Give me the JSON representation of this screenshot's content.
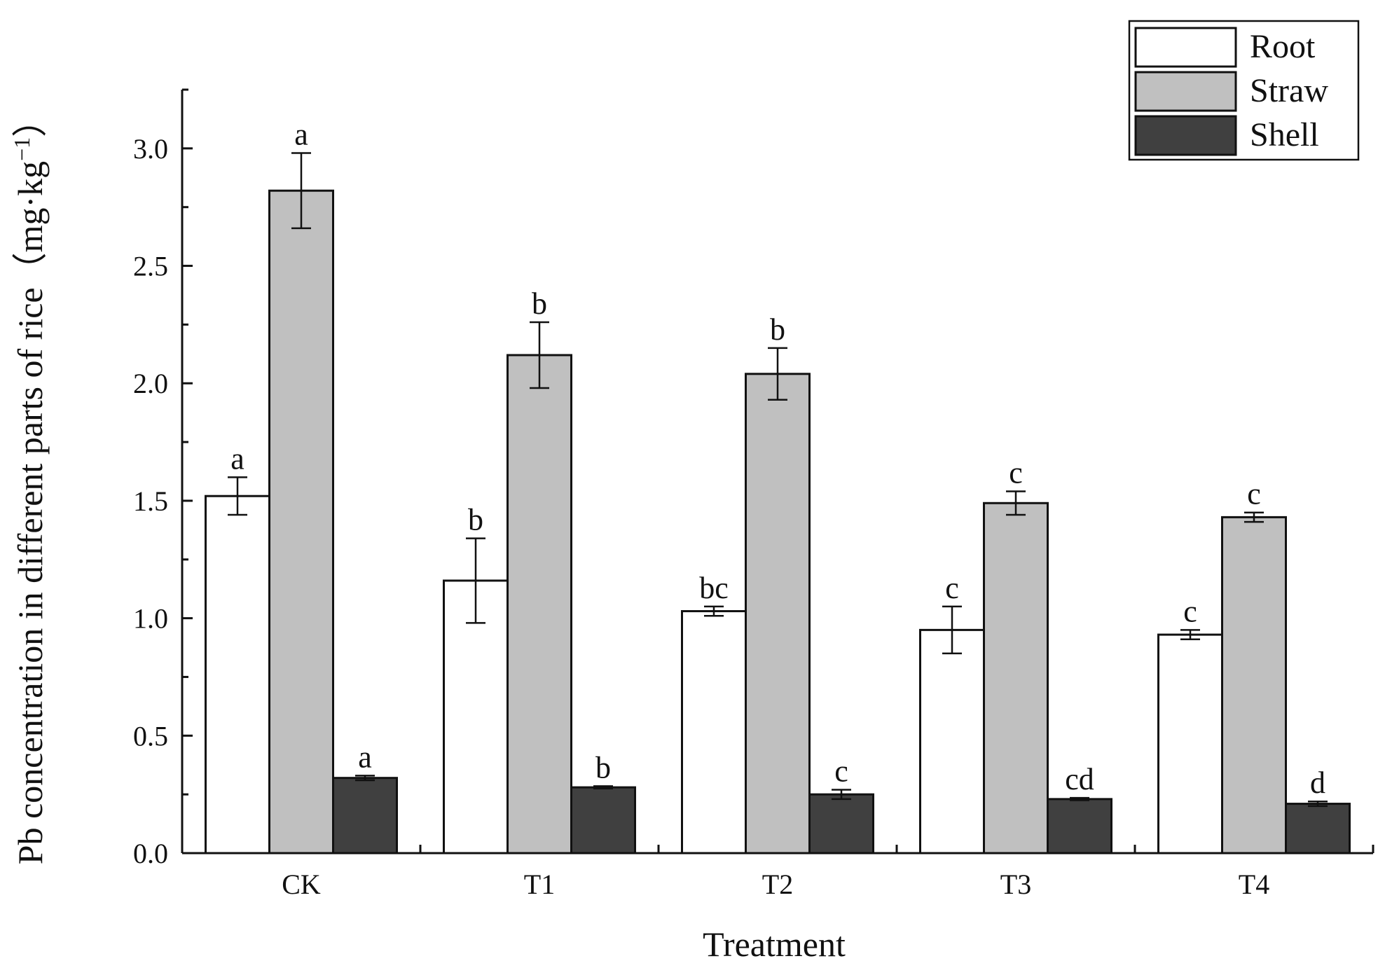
{
  "chart_data": {
    "type": "bar",
    "title": "",
    "xlabel": "Treatment",
    "ylabel": "Pb concentration in different parts of rice",
    "ylabel_unit": "（mg·kg",
    "ylabel_unit_sup": "−1",
    "ylabel_unit_close": "）",
    "categories": [
      "CK",
      "T1",
      "T2",
      "T3",
      "T4"
    ],
    "ylim": [
      0,
      3.25
    ],
    "yticks": [
      0.0,
      0.5,
      1.0,
      1.5,
      2.0,
      2.5,
      3.0
    ],
    "ytick_labels": [
      "0.0",
      "0.5",
      "1.0",
      "1.5",
      "2.0",
      "2.5",
      "3.0"
    ],
    "legend_position": "top-right",
    "series": [
      {
        "name": "Root",
        "color": "#ffffff",
        "values": [
          1.52,
          1.16,
          1.03,
          0.95,
          0.93
        ],
        "errors": [
          0.08,
          0.18,
          0.02,
          0.1,
          0.02
        ],
        "labels": [
          "a",
          "b",
          "bc",
          "c",
          "c"
        ]
      },
      {
        "name": "Straw",
        "color": "#c0c0c0",
        "values": [
          2.82,
          2.12,
          2.04,
          1.49,
          1.43
        ],
        "errors": [
          0.16,
          0.14,
          0.11,
          0.05,
          0.02
        ],
        "labels": [
          "a",
          "b",
          "b",
          "c",
          "c"
        ]
      },
      {
        "name": "Shell",
        "color": "#404040",
        "values": [
          0.32,
          0.28,
          0.25,
          0.23,
          0.21
        ],
        "errors": [
          0.01,
          0.005,
          0.02,
          0.005,
          0.01
        ],
        "labels": [
          "a",
          "b",
          "c",
          "cd",
          "d"
        ]
      }
    ]
  }
}
